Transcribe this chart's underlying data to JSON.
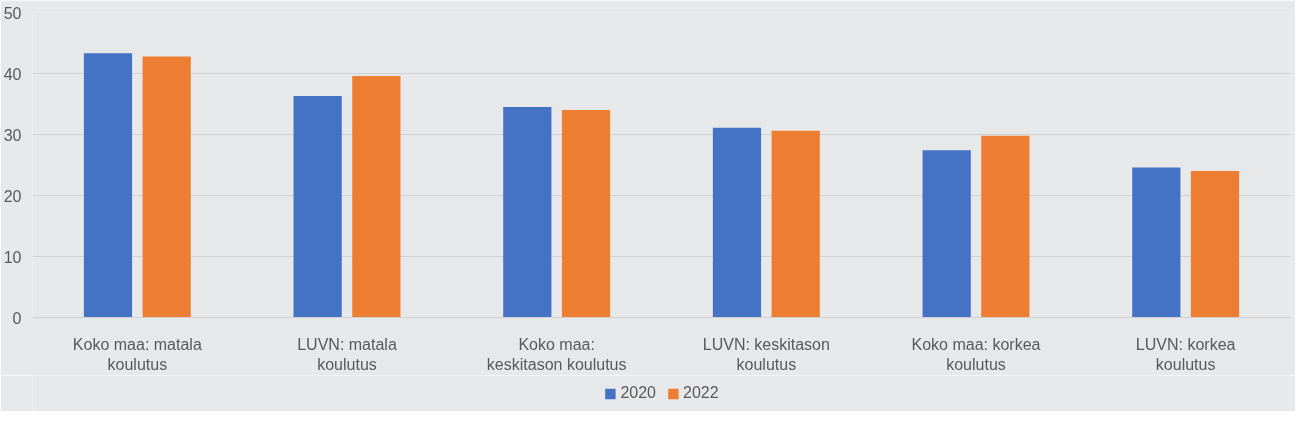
{
  "chart_data": {
    "type": "bar",
    "categories": [
      "Koko maa: matala koulutus",
      "LUVN: matala koulutus",
      "Koko maa: keskitason koulutus",
      "LUVN: keskitason koulutus",
      "Koko maa: korkea koulutus",
      "LUVN: korkea koulutus"
    ],
    "series": [
      {
        "name": "2020",
        "color": "#4472c4",
        "values": [
          43.3,
          36.3,
          34.5,
          31.1,
          27.4,
          24.6
        ]
      },
      {
        "name": "2022",
        "color": "#ed7d31",
        "values": [
          42.8,
          39.6,
          34.0,
          30.6,
          29.8,
          24.0
        ]
      }
    ],
    "ylim": [
      0,
      50
    ],
    "yticks": [
      0,
      10,
      20,
      30,
      40,
      50
    ],
    "grid": "y",
    "legend": "bottom"
  }
}
